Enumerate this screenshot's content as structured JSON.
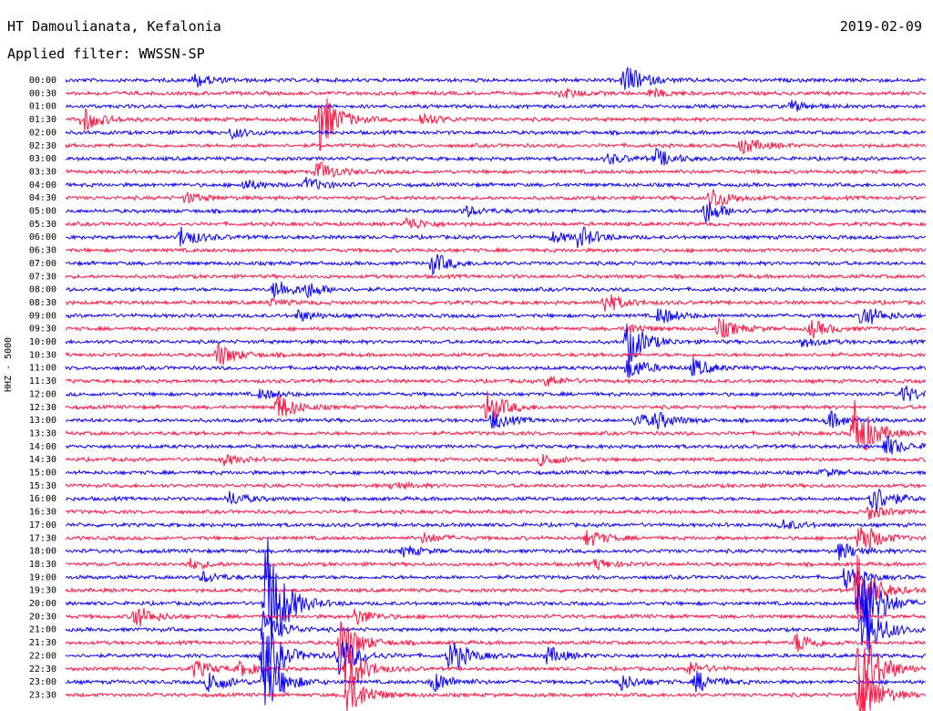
{
  "header": {
    "station": "HT Damoulianata, Kefalonia",
    "date": "2019-02-09",
    "filter": "Applied filter: WWSSN-SP"
  },
  "axis": {
    "channel_label": "HHZ - 5000"
  },
  "colors": {
    "trace_a": "#0a00ff",
    "trace_b": "#ff1744"
  },
  "chart_data": {
    "type": "line",
    "title": "",
    "rows": [
      "00:00",
      "00:30",
      "01:00",
      "01:30",
      "02:00",
      "02:30",
      "03:00",
      "03:30",
      "04:00",
      "04:30",
      "05:00",
      "05:30",
      "06:00",
      "06:30",
      "07:00",
      "07:30",
      "08:00",
      "08:30",
      "09:00",
      "09:30",
      "10:00",
      "10:30",
      "11:00",
      "11:30",
      "12:00",
      "12:30",
      "13:00",
      "13:30",
      "14:00",
      "14:30",
      "15:00",
      "15:30",
      "16:00",
      "16:30",
      "17:00",
      "17:30",
      "18:00",
      "18:30",
      "19:00",
      "19:30",
      "20:00",
      "20:30",
      "21:00",
      "21:30",
      "22:00",
      "22:30",
      "23:00",
      "23:30"
    ],
    "row_minutes": 30,
    "color_pattern": [
      "blue",
      "red"
    ],
    "events": [
      {
        "row": 0,
        "minute": 4.5,
        "amp": 8
      },
      {
        "row": 0,
        "minute": 19.5,
        "amp": 18
      },
      {
        "row": 1,
        "minute": 17.3,
        "amp": 6
      },
      {
        "row": 1,
        "minute": 20.4,
        "amp": 5
      },
      {
        "row": 2,
        "minute": 25.3,
        "amp": 6
      },
      {
        "row": 3,
        "minute": 0.6,
        "amp": 14
      },
      {
        "row": 3,
        "minute": 8.8,
        "amp": 40
      },
      {
        "row": 3,
        "minute": 12.4,
        "amp": 8
      },
      {
        "row": 4,
        "minute": 5.8,
        "amp": 6
      },
      {
        "row": 5,
        "minute": 23.6,
        "amp": 10
      },
      {
        "row": 6,
        "minute": 18.9,
        "amp": 6
      },
      {
        "row": 6,
        "minute": 20.6,
        "amp": 10
      },
      {
        "row": 7,
        "minute": 8.8,
        "amp": 12
      },
      {
        "row": 8,
        "minute": 6.2,
        "amp": 6
      },
      {
        "row": 8,
        "minute": 8.4,
        "amp": 8
      },
      {
        "row": 9,
        "minute": 4.2,
        "amp": 6
      },
      {
        "row": 9,
        "minute": 22.5,
        "amp": 14
      },
      {
        "row": 10,
        "minute": 13.9,
        "amp": 6
      },
      {
        "row": 10,
        "minute": 22.3,
        "amp": 14
      },
      {
        "row": 11,
        "minute": 11.9,
        "amp": 8
      },
      {
        "row": 12,
        "minute": 4.0,
        "amp": 12
      },
      {
        "row": 12,
        "minute": 17.0,
        "amp": 6
      },
      {
        "row": 12,
        "minute": 17.9,
        "amp": 12
      },
      {
        "row": 14,
        "minute": 12.8,
        "amp": 12
      },
      {
        "row": 16,
        "minute": 7.3,
        "amp": 12
      },
      {
        "row": 16,
        "minute": 8.4,
        "amp": 8
      },
      {
        "row": 17,
        "minute": 7.1,
        "amp": 4
      },
      {
        "row": 17,
        "minute": 18.8,
        "amp": 12
      },
      {
        "row": 18,
        "minute": 8.1,
        "amp": 6
      },
      {
        "row": 18,
        "minute": 20.7,
        "amp": 10
      },
      {
        "row": 18,
        "minute": 27.8,
        "amp": 14
      },
      {
        "row": 19,
        "minute": 19.6,
        "amp": 6
      },
      {
        "row": 19,
        "minute": 22.8,
        "amp": 12
      },
      {
        "row": 19,
        "minute": 26.0,
        "amp": 10
      },
      {
        "row": 20,
        "minute": 19.6,
        "amp": 26
      },
      {
        "row": 20,
        "minute": 25.7,
        "amp": 6
      },
      {
        "row": 21,
        "minute": 5.3,
        "amp": 14
      },
      {
        "row": 22,
        "minute": 19.6,
        "amp": 14
      },
      {
        "row": 22,
        "minute": 21.9,
        "amp": 10
      },
      {
        "row": 23,
        "minute": 16.8,
        "amp": 6
      },
      {
        "row": 24,
        "minute": 6.8,
        "amp": 6
      },
      {
        "row": 24,
        "minute": 29.2,
        "amp": 10
      },
      {
        "row": 25,
        "minute": 7.4,
        "amp": 16
      },
      {
        "row": 25,
        "minute": 14.7,
        "amp": 20
      },
      {
        "row": 26,
        "minute": 14.9,
        "amp": 10
      },
      {
        "row": 26,
        "minute": 19.9,
        "amp": 8
      },
      {
        "row": 26,
        "minute": 20.6,
        "amp": 8
      },
      {
        "row": 26,
        "minute": 26.6,
        "amp": 10
      },
      {
        "row": 27,
        "minute": 27.5,
        "amp": 40
      },
      {
        "row": 28,
        "minute": 28.6,
        "amp": 12
      },
      {
        "row": 29,
        "minute": 5.5,
        "amp": 6
      },
      {
        "row": 29,
        "minute": 16.6,
        "amp": 8
      },
      {
        "row": 30,
        "minute": 26.4,
        "amp": 4
      },
      {
        "row": 31,
        "minute": 11.4,
        "amp": 4
      },
      {
        "row": 32,
        "minute": 5.7,
        "amp": 8
      },
      {
        "row": 32,
        "minute": 28.1,
        "amp": 20
      },
      {
        "row": 33,
        "minute": 28.0,
        "amp": 8
      },
      {
        "row": 34,
        "minute": 25.0,
        "amp": 6
      },
      {
        "row": 35,
        "minute": 12.5,
        "amp": 6
      },
      {
        "row": 35,
        "minute": 18.2,
        "amp": 10
      },
      {
        "row": 35,
        "minute": 27.7,
        "amp": 20
      },
      {
        "row": 36,
        "minute": 11.8,
        "amp": 6
      },
      {
        "row": 36,
        "minute": 27.0,
        "amp": 10
      },
      {
        "row": 37,
        "minute": 4.3,
        "amp": 6
      },
      {
        "row": 37,
        "minute": 18.5,
        "amp": 6
      },
      {
        "row": 38,
        "minute": 4.8,
        "amp": 6
      },
      {
        "row": 38,
        "minute": 27.2,
        "amp": 14
      },
      {
        "row": 39,
        "minute": 27.6,
        "amp": 40
      },
      {
        "row": 40,
        "minute": 7.0,
        "amp": 80
      },
      {
        "row": 40,
        "minute": 27.7,
        "amp": 60
      },
      {
        "row": 41,
        "minute": 2.4,
        "amp": 14
      },
      {
        "row": 41,
        "minute": 10.1,
        "amp": 10
      },
      {
        "row": 42,
        "minute": 6.9,
        "amp": 20
      },
      {
        "row": 42,
        "minute": 27.8,
        "amp": 40
      },
      {
        "row": 43,
        "minute": 9.6,
        "amp": 30
      },
      {
        "row": 43,
        "minute": 25.5,
        "amp": 12
      },
      {
        "row": 44,
        "minute": 6.9,
        "amp": 40
      },
      {
        "row": 44,
        "minute": 9.5,
        "amp": 26
      },
      {
        "row": 44,
        "minute": 13.4,
        "amp": 20
      },
      {
        "row": 44,
        "minute": 16.8,
        "amp": 10
      },
      {
        "row": 45,
        "minute": 4.5,
        "amp": 10
      },
      {
        "row": 45,
        "minute": 6.1,
        "amp": 8
      },
      {
        "row": 45,
        "minute": 9.8,
        "amp": 30
      },
      {
        "row": 45,
        "minute": 21.7,
        "amp": 8
      },
      {
        "row": 45,
        "minute": 27.7,
        "amp": 60
      },
      {
        "row": 46,
        "minute": 5.0,
        "amp": 14
      },
      {
        "row": 46,
        "minute": 6.9,
        "amp": 40
      },
      {
        "row": 46,
        "minute": 12.8,
        "amp": 12
      },
      {
        "row": 46,
        "minute": 19.3,
        "amp": 10
      },
      {
        "row": 46,
        "minute": 22.0,
        "amp": 12
      },
      {
        "row": 47,
        "minute": 9.8,
        "amp": 30
      },
      {
        "row": 47,
        "minute": 27.7,
        "amp": 40
      }
    ]
  }
}
